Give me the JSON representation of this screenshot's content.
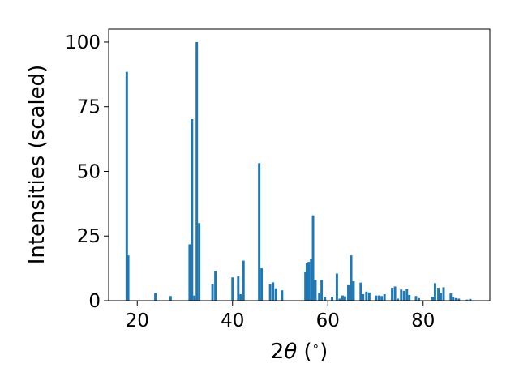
{
  "chart_data": {
    "type": "bar",
    "xlabel_parts": [
      "2",
      "θ",
      " (",
      "∘",
      ")"
    ],
    "ylabel": "Intensities (scaled)",
    "xlim": [
      14.0,
      94.0
    ],
    "ylim": [
      0,
      105
    ],
    "xticks": [
      20,
      40,
      60,
      80
    ],
    "yticks": [
      0,
      25,
      50,
      75,
      100
    ],
    "grid": false,
    "bar_color": "#1f77b4",
    "peaks": [
      {
        "x": 17.8,
        "y": 88.5
      },
      {
        "x": 18.1,
        "y": 17.5
      },
      {
        "x": 23.8,
        "y": 3.0
      },
      {
        "x": 27.0,
        "y": 1.8
      },
      {
        "x": 31.0,
        "y": 21.8
      },
      {
        "x": 31.5,
        "y": 70.2
      },
      {
        "x": 32.0,
        "y": 2.0
      },
      {
        "x": 32.5,
        "y": 100.0
      },
      {
        "x": 33.0,
        "y": 30.0
      },
      {
        "x": 35.8,
        "y": 6.5
      },
      {
        "x": 36.4,
        "y": 11.5
      },
      {
        "x": 40.0,
        "y": 9.0
      },
      {
        "x": 41.2,
        "y": 9.5
      },
      {
        "x": 41.7,
        "y": 2.5
      },
      {
        "x": 42.3,
        "y": 15.5
      },
      {
        "x": 45.6,
        "y": 53.2
      },
      {
        "x": 46.1,
        "y": 12.5
      },
      {
        "x": 47.9,
        "y": 6.3
      },
      {
        "x": 48.5,
        "y": 7.1
      },
      {
        "x": 49.1,
        "y": 4.8
      },
      {
        "x": 50.4,
        "y": 4.0
      },
      {
        "x": 55.3,
        "y": 11.0
      },
      {
        "x": 55.6,
        "y": 14.5
      },
      {
        "x": 56.0,
        "y": 15.0
      },
      {
        "x": 56.5,
        "y": 16.0
      },
      {
        "x": 56.9,
        "y": 33.0
      },
      {
        "x": 57.4,
        "y": 8.0
      },
      {
        "x": 58.2,
        "y": 3.0
      },
      {
        "x": 58.7,
        "y": 8.0
      },
      {
        "x": 59.4,
        "y": 1.5
      },
      {
        "x": 60.9,
        "y": 1.5
      },
      {
        "x": 61.9,
        "y": 10.5
      },
      {
        "x": 62.5,
        "y": 0.8
      },
      {
        "x": 63.1,
        "y": 2.0
      },
      {
        "x": 63.6,
        "y": 1.7
      },
      {
        "x": 64.3,
        "y": 6.0
      },
      {
        "x": 64.9,
        "y": 17.5
      },
      {
        "x": 65.4,
        "y": 7.5
      },
      {
        "x": 66.9,
        "y": 7.0
      },
      {
        "x": 67.4,
        "y": 2.5
      },
      {
        "x": 68.1,
        "y": 3.5
      },
      {
        "x": 68.7,
        "y": 3.2
      },
      {
        "x": 70.1,
        "y": 2.0
      },
      {
        "x": 70.7,
        "y": 2.0
      },
      {
        "x": 71.3,
        "y": 1.8
      },
      {
        "x": 71.9,
        "y": 2.5
      },
      {
        "x": 73.5,
        "y": 5.0
      },
      {
        "x": 74.1,
        "y": 5.5
      },
      {
        "x": 74.7,
        "y": 0.8
      },
      {
        "x": 75.4,
        "y": 4.3
      },
      {
        "x": 76.0,
        "y": 3.8
      },
      {
        "x": 76.6,
        "y": 4.5
      },
      {
        "x": 77.1,
        "y": 2.2
      },
      {
        "x": 78.5,
        "y": 1.8
      },
      {
        "x": 79.1,
        "y": 1.0
      },
      {
        "x": 82.0,
        "y": 1.5
      },
      {
        "x": 82.5,
        "y": 6.8
      },
      {
        "x": 83.2,
        "y": 5.0
      },
      {
        "x": 83.7,
        "y": 3.0
      },
      {
        "x": 84.3,
        "y": 5.2
      },
      {
        "x": 85.8,
        "y": 2.8
      },
      {
        "x": 86.3,
        "y": 1.5
      },
      {
        "x": 86.9,
        "y": 1.0
      },
      {
        "x": 87.5,
        "y": 0.8
      },
      {
        "x": 89.2,
        "y": 0.4
      },
      {
        "x": 89.9,
        "y": 0.7
      }
    ]
  }
}
